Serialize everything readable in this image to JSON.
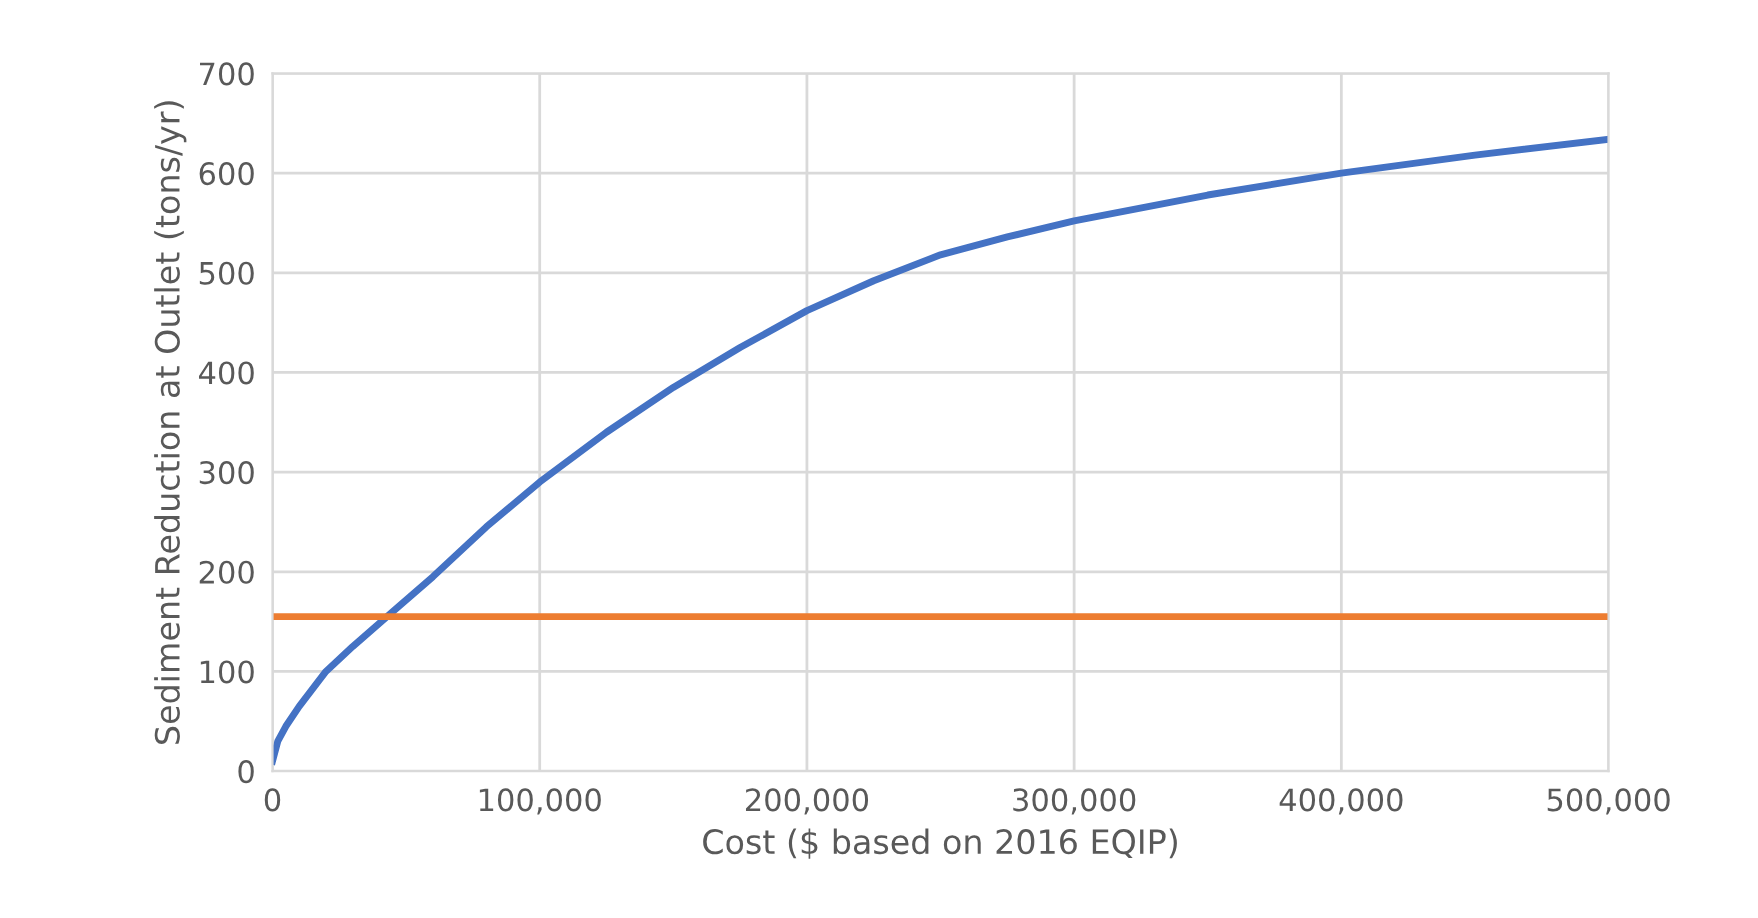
{
  "chart_data": {
    "type": "line",
    "xlabel": "Cost ($ based on 2016 EQIP)",
    "ylabel": "Sediment Reduction at Outlet (tons/yr)",
    "xlim": [
      0,
      500000
    ],
    "ylim": [
      0,
      700
    ],
    "xticks": [
      {
        "value": 0,
        "label": "0"
      },
      {
        "value": 100000,
        "label": "100,000"
      },
      {
        "value": 200000,
        "label": "200,000"
      },
      {
        "value": 300000,
        "label": "300,000"
      },
      {
        "value": 400000,
        "label": "400,000"
      },
      {
        "value": 500000,
        "label": "500,000"
      }
    ],
    "yticks": [
      0,
      100,
      200,
      300,
      400,
      500,
      600,
      700
    ],
    "grid": true,
    "legend": false,
    "marker": "none",
    "line_style": "solid",
    "series": [
      {
        "color": "#4472c4",
        "x": [
          0,
          2000,
          5000,
          10000,
          20000,
          30000,
          45000,
          60000,
          80000,
          100000,
          125000,
          150000,
          175000,
          200000,
          225000,
          250000,
          275000,
          300000,
          350000,
          400000,
          450000,
          500000
        ],
        "values": [
          10,
          30,
          45,
          65,
          100,
          125,
          160,
          195,
          245,
          290,
          340,
          385,
          425,
          462,
          492,
          518,
          536,
          552,
          578,
          600,
          618,
          634
        ]
      },
      {
        "color": "#ed7d31",
        "x": [
          0,
          500000
        ],
        "values": [
          155,
          155
        ]
      }
    ]
  }
}
